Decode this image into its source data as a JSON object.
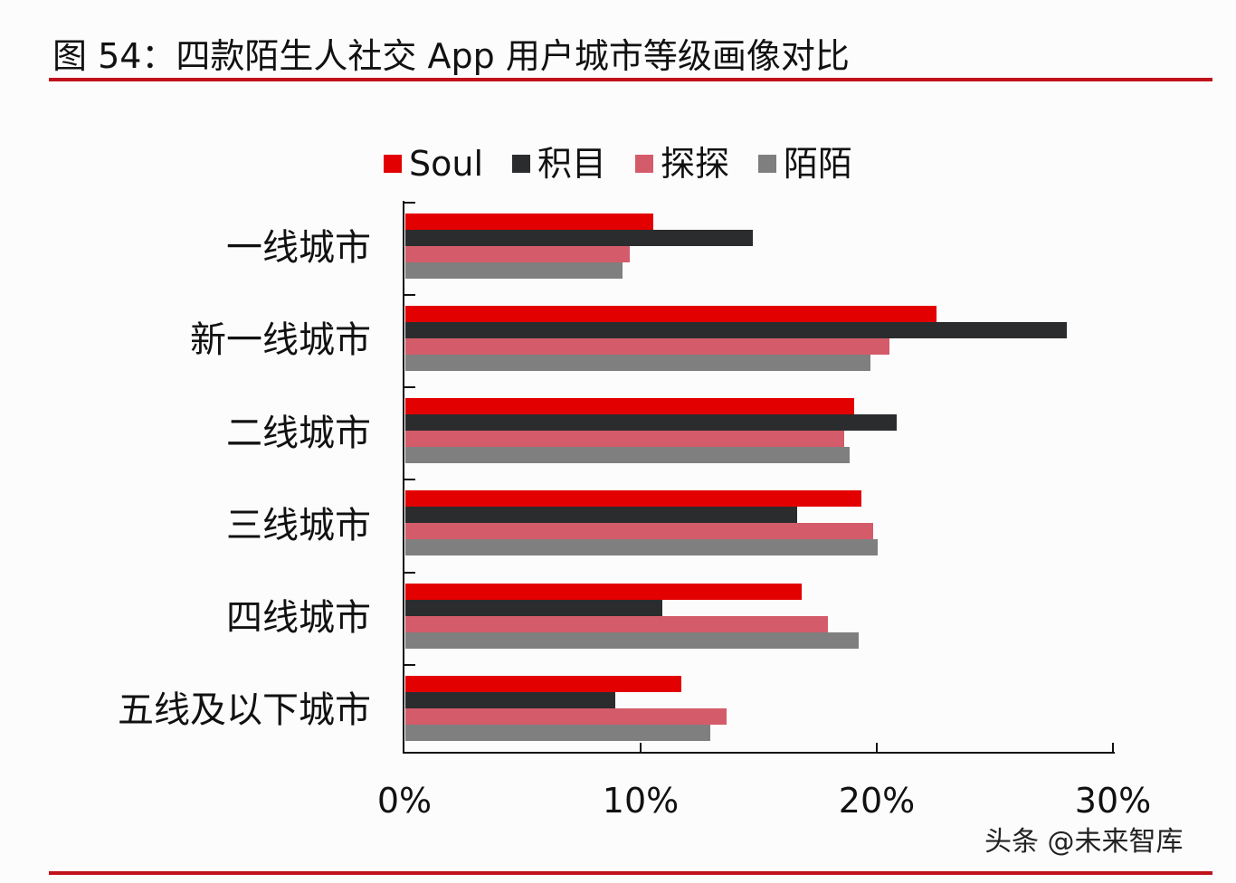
{
  "header": {
    "title": "图 54：四款陌生人社交 App 用户城市等级画像对比"
  },
  "watermark": "头条 @未来智库",
  "legend": [
    {
      "label": "Soul",
      "color": "#e30000"
    },
    {
      "label": "积目",
      "color": "#2b2c2e"
    },
    {
      "label": "探探",
      "color": "#d45c6a"
    },
    {
      "label": "陌陌",
      "color": "#7f7f7f"
    }
  ],
  "x_axis": {
    "ticks": [
      "0%",
      "10%",
      "20%",
      "30%"
    ]
  },
  "chart_data": {
    "type": "bar",
    "orientation": "horizontal",
    "title": "图 54：四款陌生人社交 App 用户城市等级画像对比",
    "xlabel": "",
    "ylabel": "",
    "xlim": [
      0,
      30
    ],
    "x_ticks": [
      "0%",
      "10%",
      "20%",
      "30%"
    ],
    "grid": false,
    "legend_position": "top",
    "categories": [
      "一线城市",
      "新一线城市",
      "二线城市",
      "三线城市",
      "四线城市",
      "五线及以下城市"
    ],
    "series": [
      {
        "name": "Soul",
        "color": "#e30000",
        "values": [
          10.5,
          22.5,
          19.0,
          19.3,
          16.8,
          11.7
        ]
      },
      {
        "name": "积目",
        "color": "#2b2c2e",
        "values": [
          14.7,
          28.0,
          20.8,
          16.6,
          10.9,
          8.9
        ]
      },
      {
        "name": "探探",
        "color": "#d45c6a",
        "values": [
          9.5,
          20.5,
          18.6,
          19.8,
          17.9,
          13.6
        ]
      },
      {
        "name": "陌陌",
        "color": "#7f7f7f",
        "values": [
          9.2,
          19.7,
          18.8,
          20.0,
          19.2,
          12.9
        ]
      }
    ],
    "unit": "%"
  }
}
